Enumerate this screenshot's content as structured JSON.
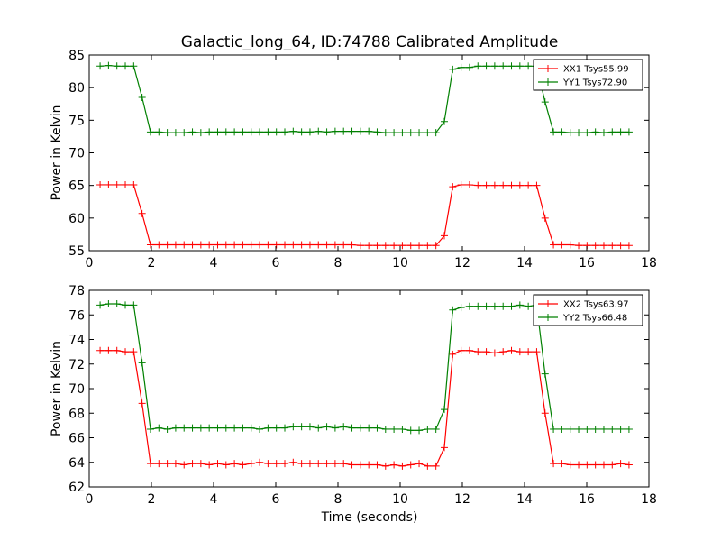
{
  "chart_data": {
    "title": "Galactic_long_64, ID:74788 Calibrated Amplitude",
    "xlabel": "Time (seconds)",
    "colors": {
      "XX": "#ff0000",
      "YY": "#008000"
    },
    "x": [
      0.35,
      0.62,
      0.89,
      1.16,
      1.43,
      1.7,
      1.97,
      2.24,
      2.51,
      2.78,
      3.05,
      3.32,
      3.59,
      3.86,
      4.13,
      4.4,
      4.67,
      4.94,
      5.21,
      5.48,
      5.75,
      6.02,
      6.29,
      6.56,
      6.83,
      7.1,
      7.37,
      7.64,
      7.91,
      8.18,
      8.45,
      8.72,
      8.99,
      9.26,
      9.53,
      9.8,
      10.07,
      10.34,
      10.61,
      10.88,
      11.15,
      11.42,
      11.69,
      11.96,
      12.23,
      12.5,
      12.77,
      13.04,
      13.31,
      13.58,
      13.85,
      14.12,
      14.39,
      14.66,
      14.93,
      15.2,
      15.47,
      15.74,
      16.01,
      16.28,
      16.55,
      16.82,
      17.09,
      17.36
    ],
    "panels": [
      {
        "type": "line",
        "ylabel": "Power in Kelvin",
        "xlim": [
          0,
          18
        ],
        "ylim": [
          55,
          85
        ],
        "xticks": [
          0,
          2,
          4,
          6,
          8,
          10,
          12,
          14,
          16,
          18
        ],
        "yticks": [
          55,
          60,
          65,
          70,
          75,
          80,
          85
        ],
        "legend_position": "top-right",
        "series": [
          {
            "name": "XX1 Tsys55.99",
            "color_key": "XX",
            "values": [
              65.1,
              65.1,
              65.1,
              65.1,
              65.1,
              60.7,
              55.9,
              55.9,
              55.9,
              55.9,
              55.9,
              55.9,
              55.9,
              55.9,
              55.9,
              55.9,
              55.9,
              55.9,
              55.9,
              55.9,
              55.9,
              55.9,
              55.9,
              55.9,
              55.9,
              55.9,
              55.9,
              55.9,
              55.9,
              55.9,
              55.9,
              55.8,
              55.8,
              55.8,
              55.8,
              55.8,
              55.8,
              55.8,
              55.8,
              55.8,
              55.8,
              57.3,
              64.8,
              65.1,
              65.1,
              65.0,
              65.0,
              65.0,
              65.0,
              65.0,
              65.0,
              65.0,
              65.0,
              60.0,
              55.9,
              55.9,
              55.9,
              55.8,
              55.8,
              55.8,
              55.8,
              55.8,
              55.8,
              55.8
            ]
          },
          {
            "name": "YY1 Tsys72.90",
            "color_key": "YY",
            "values": [
              83.3,
              83.4,
              83.3,
              83.3,
              83.3,
              78.5,
              73.2,
              73.2,
              73.1,
              73.1,
              73.1,
              73.2,
              73.1,
              73.2,
              73.2,
              73.2,
              73.2,
              73.2,
              73.2,
              73.2,
              73.2,
              73.2,
              73.2,
              73.3,
              73.2,
              73.2,
              73.3,
              73.2,
              73.3,
              73.3,
              73.3,
              73.3,
              73.3,
              73.2,
              73.1,
              73.1,
              73.1,
              73.1,
              73.1,
              73.1,
              73.1,
              74.8,
              82.8,
              83.1,
              83.1,
              83.3,
              83.3,
              83.3,
              83.3,
              83.3,
              83.3,
              83.3,
              83.3,
              77.8,
              73.2,
              73.2,
              73.1,
              73.1,
              73.1,
              73.2,
              73.1,
              73.2,
              73.2,
              73.2
            ]
          }
        ]
      },
      {
        "type": "line",
        "ylabel": "Power in Kelvin",
        "xlim": [
          0,
          18
        ],
        "ylim": [
          62,
          78
        ],
        "xticks": [
          0,
          2,
          4,
          6,
          8,
          10,
          12,
          14,
          16,
          18
        ],
        "yticks": [
          62,
          64,
          66,
          68,
          70,
          72,
          74,
          76,
          78
        ],
        "legend_position": "top-right",
        "series": [
          {
            "name": "XX2 Tsys63.97",
            "color_key": "XX",
            "values": [
              73.1,
              73.1,
              73.1,
              73.0,
              73.0,
              68.8,
              63.9,
              63.9,
              63.9,
              63.9,
              63.8,
              63.9,
              63.9,
              63.8,
              63.9,
              63.8,
              63.9,
              63.8,
              63.9,
              64.0,
              63.9,
              63.9,
              63.9,
              64.0,
              63.9,
              63.9,
              63.9,
              63.9,
              63.9,
              63.9,
              63.8,
              63.8,
              63.8,
              63.8,
              63.7,
              63.8,
              63.7,
              63.8,
              63.9,
              63.7,
              63.7,
              65.2,
              72.8,
              73.1,
              73.1,
              73.0,
              73.0,
              72.9,
              73.0,
              73.1,
              73.0,
              73.0,
              73.0,
              68.0,
              63.9,
              63.9,
              63.8,
              63.8,
              63.8,
              63.8,
              63.8,
              63.8,
              63.9,
              63.8
            ]
          },
          {
            "name": "YY2 Tsys66.48",
            "color_key": "YY",
            "values": [
              76.8,
              76.9,
              76.9,
              76.8,
              76.8,
              72.1,
              66.7,
              66.8,
              66.7,
              66.8,
              66.8,
              66.8,
              66.8,
              66.8,
              66.8,
              66.8,
              66.8,
              66.8,
              66.8,
              66.7,
              66.8,
              66.8,
              66.8,
              66.9,
              66.9,
              66.9,
              66.8,
              66.9,
              66.8,
              66.9,
              66.8,
              66.8,
              66.8,
              66.8,
              66.7,
              66.7,
              66.7,
              66.6,
              66.6,
              66.7,
              66.7,
              68.3,
              76.4,
              76.6,
              76.7,
              76.7,
              76.7,
              76.7,
              76.7,
              76.7,
              76.8,
              76.7,
              76.8,
              71.2,
              66.7,
              66.7,
              66.7,
              66.7,
              66.7,
              66.7,
              66.7,
              66.7,
              66.7,
              66.7
            ]
          }
        ]
      }
    ]
  }
}
